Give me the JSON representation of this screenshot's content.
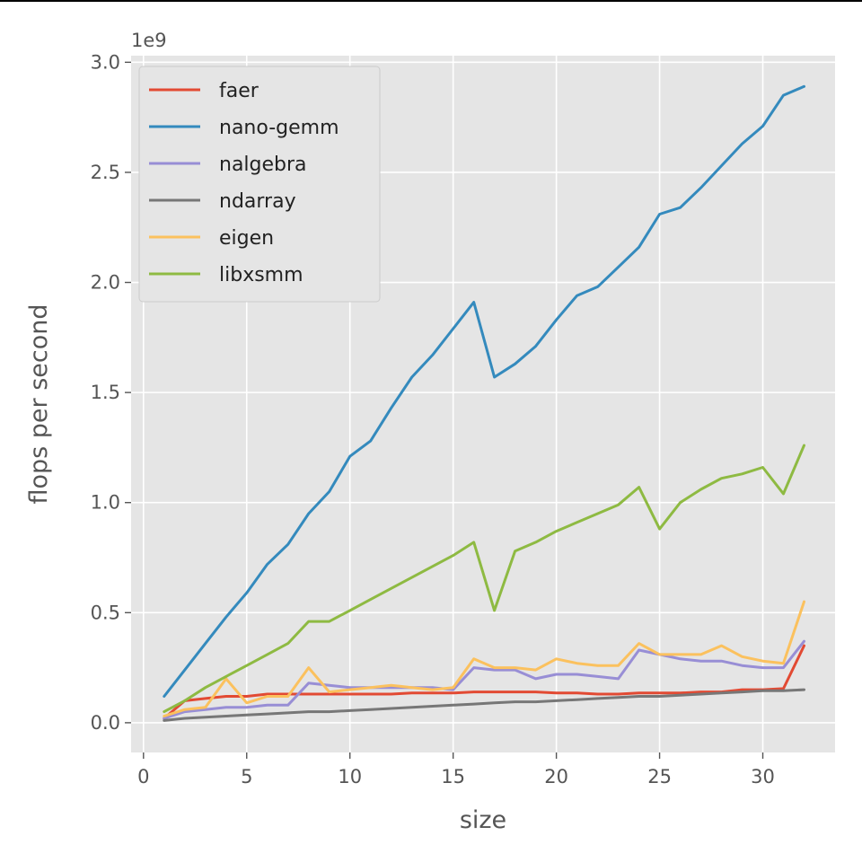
{
  "chart_data": {
    "type": "line",
    "title": "",
    "xlabel": "size",
    "ylabel": "flops per second",
    "y_offset_label": "1e9",
    "xlim": [
      -0.6,
      33.5
    ],
    "ylim": [
      -0.135,
      3.03
    ],
    "x_ticks": [
      0,
      5,
      10,
      15,
      20,
      25,
      30
    ],
    "x_tick_labels": [
      "0",
      "5",
      "10",
      "15",
      "20",
      "25",
      "30"
    ],
    "y_ticks": [
      0.0,
      0.5,
      1.0,
      1.5,
      2.0,
      2.5,
      3.0
    ],
    "y_tick_labels": [
      "0.0",
      "0.5",
      "1.0",
      "1.5",
      "2.0",
      "2.5",
      "3.0"
    ],
    "grid": true,
    "legend_position": "top-left",
    "background_color": "#e5e5e5",
    "grid_color": "#ffffff",
    "x": [
      1,
      2,
      3,
      4,
      5,
      6,
      7,
      8,
      9,
      10,
      11,
      12,
      13,
      14,
      15,
      16,
      17,
      18,
      19,
      20,
      21,
      22,
      23,
      24,
      25,
      26,
      27,
      28,
      29,
      30,
      31,
      32
    ],
    "series": [
      {
        "name": "faer",
        "color": "#e24a33",
        "values": [
          0.02,
          0.1,
          0.11,
          0.12,
          0.12,
          0.13,
          0.13,
          0.13,
          0.13,
          0.13,
          0.13,
          0.13,
          0.135,
          0.135,
          0.135,
          0.14,
          0.14,
          0.14,
          0.14,
          0.135,
          0.135,
          0.13,
          0.13,
          0.135,
          0.135,
          0.135,
          0.14,
          0.14,
          0.15,
          0.15,
          0.155,
          0.35
        ]
      },
      {
        "name": "nano-gemm",
        "color": "#348abd",
        "values": [
          0.12,
          0.24,
          0.36,
          0.48,
          0.59,
          0.72,
          0.81,
          0.95,
          1.05,
          1.21,
          1.28,
          1.43,
          1.57,
          1.67,
          1.79,
          1.91,
          1.57,
          1.63,
          1.71,
          1.83,
          1.94,
          1.98,
          2.07,
          2.16,
          2.31,
          2.34,
          2.43,
          2.53,
          2.63,
          2.71,
          2.85,
          2.89
        ]
      },
      {
        "name": "nalgebra",
        "color": "#988ed5",
        "values": [
          0.02,
          0.05,
          0.06,
          0.07,
          0.07,
          0.08,
          0.08,
          0.18,
          0.17,
          0.16,
          0.16,
          0.16,
          0.16,
          0.16,
          0.15,
          0.25,
          0.24,
          0.24,
          0.2,
          0.22,
          0.22,
          0.21,
          0.2,
          0.33,
          0.31,
          0.29,
          0.28,
          0.28,
          0.26,
          0.25,
          0.25,
          0.37
        ]
      },
      {
        "name": "ndarray",
        "color": "#777777",
        "values": [
          0.01,
          0.02,
          0.025,
          0.03,
          0.035,
          0.04,
          0.045,
          0.05,
          0.05,
          0.055,
          0.06,
          0.065,
          0.07,
          0.075,
          0.08,
          0.085,
          0.09,
          0.095,
          0.095,
          0.1,
          0.105,
          0.11,
          0.115,
          0.12,
          0.12,
          0.125,
          0.13,
          0.135,
          0.14,
          0.145,
          0.145,
          0.15
        ]
      },
      {
        "name": "eigen",
        "color": "#fbc15e",
        "values": [
          0.03,
          0.06,
          0.07,
          0.2,
          0.09,
          0.12,
          0.12,
          0.25,
          0.14,
          0.15,
          0.16,
          0.17,
          0.16,
          0.15,
          0.16,
          0.29,
          0.25,
          0.25,
          0.24,
          0.29,
          0.27,
          0.26,
          0.26,
          0.36,
          0.31,
          0.31,
          0.31,
          0.35,
          0.3,
          0.28,
          0.27,
          0.55
        ]
      },
      {
        "name": "libxsmm",
        "color": "#8eba42",
        "values": [
          0.05,
          0.1,
          0.16,
          0.21,
          0.26,
          0.31,
          0.36,
          0.46,
          0.46,
          0.51,
          0.56,
          0.61,
          0.66,
          0.71,
          0.76,
          0.82,
          0.51,
          0.78,
          0.82,
          0.87,
          0.91,
          0.95,
          0.99,
          1.07,
          0.88,
          1.0,
          1.06,
          1.11,
          1.13,
          1.16,
          1.04,
          1.26
        ]
      }
    ]
  }
}
